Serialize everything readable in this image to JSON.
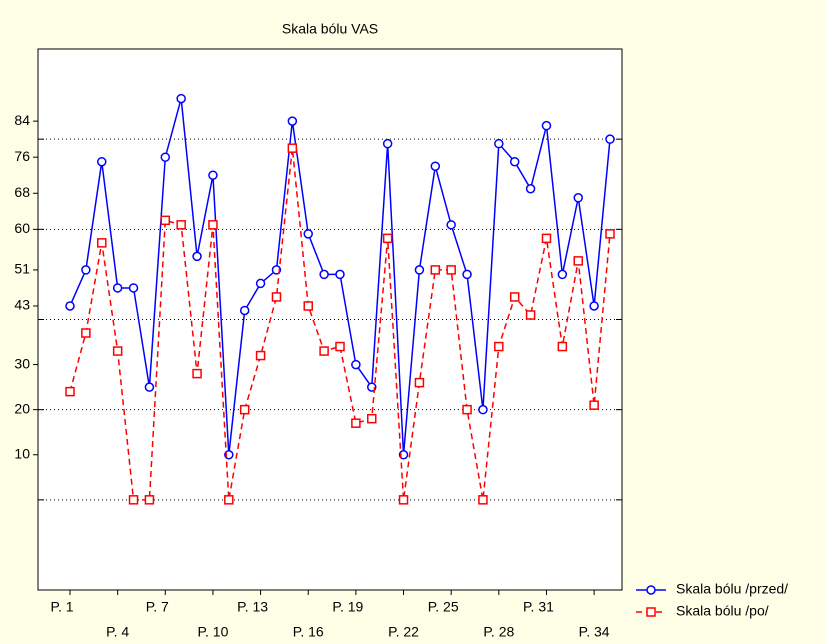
{
  "chart_data": {
    "type": "line",
    "title": "Skala bólu VAS",
    "categories": [
      "P. 1",
      null,
      null,
      "P. 4",
      null,
      null,
      "P. 7",
      null,
      null,
      "P. 10",
      null,
      null,
      "P. 13",
      null,
      null,
      "P. 16",
      null,
      null,
      "P. 19",
      null,
      null,
      "P. 22",
      null,
      null,
      "P. 25",
      null,
      null,
      "P. 28",
      null,
      null,
      "P. 31",
      null,
      null,
      "P. 34",
      null
    ],
    "series": [
      {
        "name": "Skala bólu /przed/",
        "color": "#0000ff",
        "marker": "circle",
        "dash": false,
        "values": [
          43,
          51,
          75,
          47,
          47,
          25,
          76,
          89,
          54,
          72,
          10,
          42,
          48,
          51,
          84,
          59,
          50,
          50,
          30,
          25,
          79,
          10,
          51,
          74,
          61,
          50,
          20,
          79,
          75,
          69,
          83,
          50,
          67,
          43,
          80
        ]
      },
      {
        "name": "Skala bólu /po/",
        "color": "#ff0000",
        "marker": "square",
        "dash": true,
        "values": [
          24,
          37,
          57,
          33,
          0,
          0,
          62,
          61,
          28,
          61,
          0,
          20,
          32,
          45,
          78,
          43,
          33,
          34,
          17,
          18,
          58,
          0,
          26,
          51,
          51,
          20,
          0,
          34,
          45,
          41,
          58,
          34,
          53,
          21,
          59
        ]
      }
    ],
    "ylim": [
      -20,
      100
    ],
    "yticks": [
      10,
      20,
      30,
      43,
      51,
      60,
      68,
      76,
      84
    ],
    "ygrid": [
      0,
      20,
      40,
      60,
      80
    ],
    "grid": true,
    "legend": "right-bottom"
  }
}
